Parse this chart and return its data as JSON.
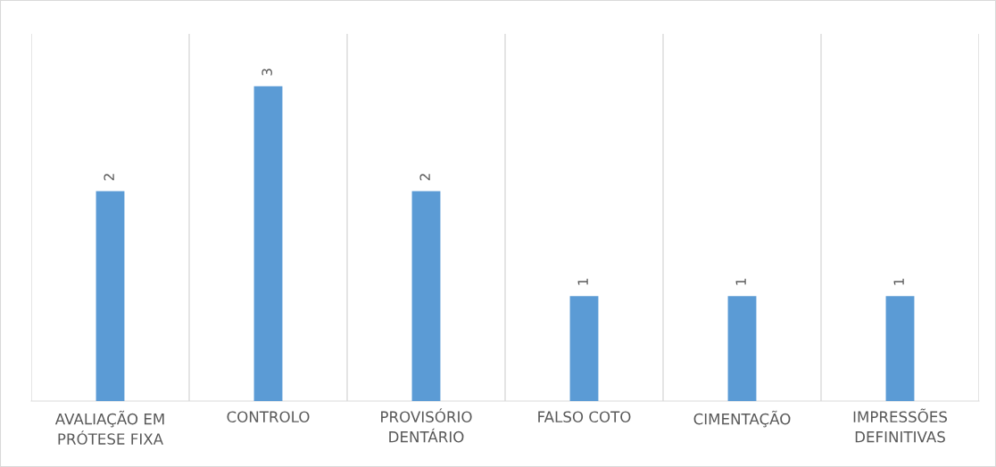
{
  "chart_data": {
    "type": "bar",
    "categories": [
      "AVALIAÇÃO EM PRÓTESE FIXA",
      "CONTROLO",
      "PROVISÓRIO DENTÁRIO",
      "FALSO COTO",
      "CIMENTAÇÃO",
      "IMPRESSÕES DEFINITIVAS"
    ],
    "values": [
      2,
      3,
      2,
      1,
      1,
      1
    ],
    "color": "#5b9bd5",
    "ylim": [
      0,
      3.5
    ],
    "data_labels": true,
    "grid": "x",
    "tick_labels": "x"
  }
}
